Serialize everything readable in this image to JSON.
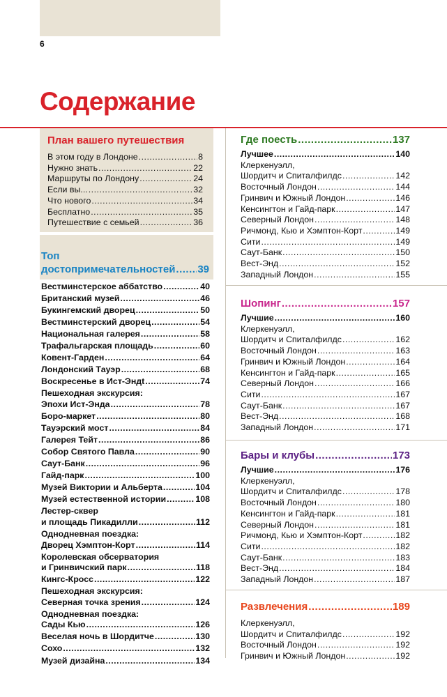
{
  "page": {
    "number": "6",
    "title": "Содержание",
    "colors": {
      "accent": "#d9222a",
      "box_bg": "#e9e3d5",
      "blue": "#1a84c4",
      "green": "#2e7a22",
      "magenta": "#c8258c",
      "purple": "#5a1f83",
      "orange": "#e8461c"
    }
  },
  "plan": {
    "title": "План вашего путешествия",
    "items": [
      {
        "label": "В этом году в Лондоне",
        "page": "8"
      },
      {
        "label": "Нужно знать",
        "page": "22"
      },
      {
        "label": "Маршруты по Лондону",
        "page": "24"
      },
      {
        "label": "Если вы...",
        "page": "32"
      },
      {
        "label": "Что нового",
        "page": "34"
      },
      {
        "label": "Бесплатно",
        "page": "35"
      },
      {
        "label": "Путешествие с семьей",
        "page": "36"
      }
    ]
  },
  "top": {
    "title_line1": "Топ",
    "title_line2": "достопримечательностей",
    "page": "39",
    "items": [
      {
        "label": "Вестминстерское аббатство",
        "page": "40"
      },
      {
        "label": "Британский музей",
        "page": "46"
      },
      {
        "label": "Букингемский дворец",
        "page": "50"
      },
      {
        "label": "Вестминстерский дворец",
        "page": "54"
      },
      {
        "label": "Национальная галерея",
        "page": "58"
      },
      {
        "label": "Трафальгарская площадь",
        "page": "60"
      },
      {
        "label": "Ковент-Гарден",
        "page": "64"
      },
      {
        "label": "Лондонский Тауэр",
        "page": "68"
      },
      {
        "label": "Воскресенье в Ист-Эндt",
        "page": "74"
      },
      {
        "line1": "Пешеходная экскурсия:",
        "label": "Эпохи Ист-Энда",
        "page": "78"
      },
      {
        "label": "Боро-маркет",
        "page": "80"
      },
      {
        "label": "Тауэрский мост",
        "page": "84"
      },
      {
        "label": "Галерея Тейт",
        "page": "86"
      },
      {
        "label": "Собор Святого Павла",
        "page": "90"
      },
      {
        "label": "Саут-Банк",
        "page": "96"
      },
      {
        "label": "Гайд-парк",
        "page": "100"
      },
      {
        "label": "Музей Виктории и Альберта",
        "page": "104"
      },
      {
        "label": "Музей естественной истории",
        "page": "108"
      },
      {
        "line1": "Лестер-сквер",
        "label": "и площадь Пикадилли",
        "page": "112"
      },
      {
        "line1": "Однодневная поездка:",
        "label": "Дворец Хэмптон-Корт",
        "page": "114"
      },
      {
        "line1": "Королевская обсерватория",
        "label": "и Гринвичский парк",
        "page": "118"
      },
      {
        "label": "Кингс-Кросс",
        "page": "122"
      },
      {
        "line1": "Пешеходная экскурсия:",
        "label": "Северная точка зрения",
        "page": "124"
      },
      {
        "line1": "Однодневная поездка:",
        "label": "Сады Кью",
        "page": "126"
      },
      {
        "label": "Веселая ночь в Шордитче",
        "page": "130"
      },
      {
        "label": "Сохо",
        "page": "132"
      },
      {
        "label": "Музей дизайна",
        "page": "134"
      }
    ]
  },
  "eat": {
    "title": "Где поесть",
    "page": "137",
    "best": {
      "label": "Лучшее",
      "page": "140"
    },
    "items": [
      {
        "line1": "Клеркенуэлл,",
        "label": "Шордитч и Спиталфилдс",
        "page": "142"
      },
      {
        "label": "Восточный Лондон",
        "page": "144"
      },
      {
        "label": "Гринвич и Южный Лондон",
        "page": "146"
      },
      {
        "label": "Кенсингтон и Гайд-парк",
        "page": "147"
      },
      {
        "label": "Северный Лондон",
        "page": "148"
      },
      {
        "label": "Ричмонд, Кью и Хэмптон-Корт",
        "page": "149"
      },
      {
        "label": "Сити",
        "page": "149"
      },
      {
        "label": "Саут-Банк",
        "page": "150"
      },
      {
        "label": "Вест-Энд",
        "page": "152"
      },
      {
        "label": "Западный Лондон",
        "page": "155"
      }
    ]
  },
  "shop": {
    "title": "Шопинг",
    "page": "157",
    "best": {
      "label": "Лучшие",
      "page": "160"
    },
    "items": [
      {
        "line1": "Клеркенуэлл,",
        "label": "Шордитч и Спиталфилдс",
        "page": "162"
      },
      {
        "label": "Восточный Лондон",
        "page": "163"
      },
      {
        "label": "Гринвич и Южный Лондон",
        "page": "164"
      },
      {
        "label": "Кенсингтон и Гайд-парк",
        "page": "165"
      },
      {
        "label": "Северный Лондон",
        "page": "166"
      },
      {
        "label": "Сити",
        "page": "167"
      },
      {
        "label": "Саут-Банк",
        "page": "167"
      },
      {
        "label": "Вест-Энд",
        "page": "168"
      },
      {
        "label": "Западный Лондон",
        "page": "171"
      }
    ]
  },
  "bars": {
    "title": "Бары и клубы",
    "page": "173",
    "best": {
      "label": "Лучшие",
      "page": "176"
    },
    "items": [
      {
        "line1": "Клеркенуэлл,",
        "label": "Шордитч и Спиталфилдс",
        "page": "178"
      },
      {
        "label": "Восточный Лондон",
        "page": "180"
      },
      {
        "label": "Кенсингтон и Гайд-парк",
        "page": "181"
      },
      {
        "label": "Северный Лондон",
        "page": "181"
      },
      {
        "label": "Ричмонд, Кью и Хэмптон-Корт",
        "page": "182"
      },
      {
        "label": "Сити",
        "page": "182"
      },
      {
        "label": "Саут-Банк",
        "page": "183"
      },
      {
        "label": "Вест-Энд",
        "page": "184"
      },
      {
        "label": "Западный Лондон",
        "page": "187"
      }
    ]
  },
  "fun": {
    "title": "Развлечения",
    "page": "189",
    "items": [
      {
        "line1": "Клеркенуэлл,",
        "label": "Шордитч и Спиталфилдс",
        "page": "192"
      },
      {
        "label": "Восточный Лондон",
        "page": "192"
      },
      {
        "label": "Гринвич и Южный Лондон",
        "page": "192"
      }
    ]
  }
}
